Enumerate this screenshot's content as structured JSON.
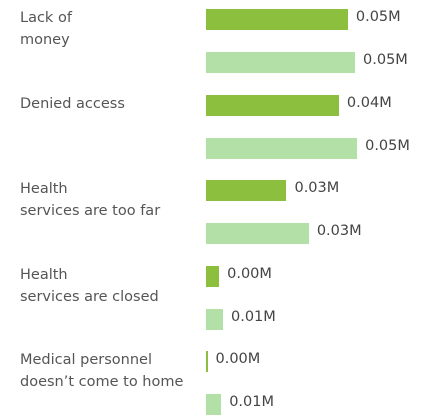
{
  "chart_data": {
    "type": "bar",
    "orientation": "horizontal",
    "categories": [
      "Lack of\nmoney",
      "Denied access",
      "Health\nservices are too far",
      "Health\nservices are closed",
      "Medical personnel\ndoesn’t come to home"
    ],
    "xlim": [
      0,
      0.051
    ],
    "series": [
      {
        "color": "#8dbf3f",
        "values": [
          0.0476,
          0.0446,
          0.027,
          0.0044,
          0.0005
        ],
        "value_labels": [
          "0.05M",
          "0.04M",
          "0.03M",
          "0.00M",
          "0.00M"
        ]
      },
      {
        "color": "#b3e0a6",
        "values": [
          0.05,
          0.0507,
          0.0345,
          0.0057,
          0.0051
        ],
        "value_labels": [
          "0.05M",
          "0.05M",
          "0.03M",
          "0.01M",
          "0.01M"
        ]
      }
    ]
  }
}
